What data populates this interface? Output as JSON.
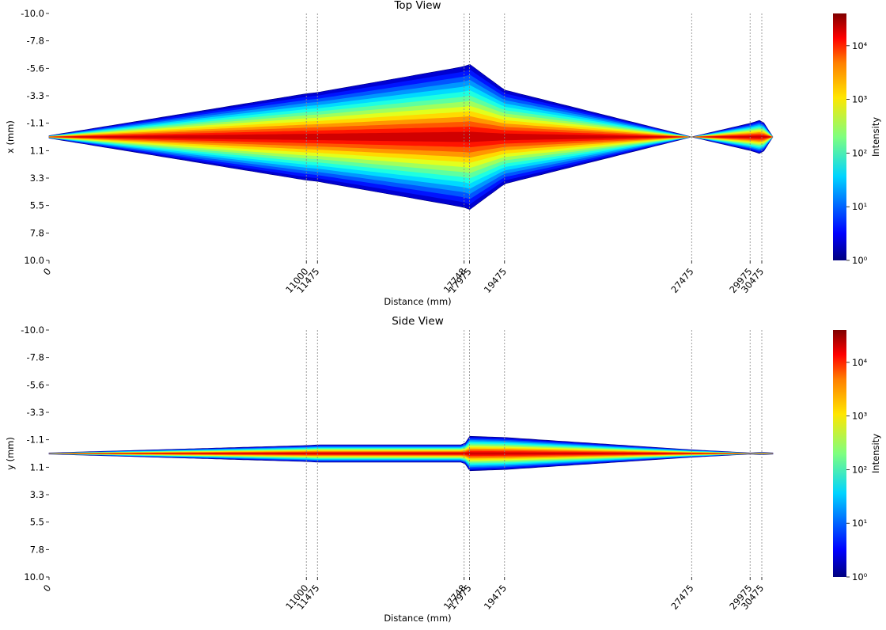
{
  "chart_data": [
    {
      "type": "ray_trace_top",
      "title": "Top View",
      "xlabel": "Distance (mm)",
      "ylabel": "x (mm)",
      "xlim": [
        0,
        30475
      ],
      "ylim": [
        -10.0,
        10.0
      ],
      "yticks": [
        "-10.0",
        "-7.8",
        "-5.6",
        "-3.3",
        "-1.1",
        "1.1",
        "3.3",
        "5.5",
        "7.8",
        "10.0"
      ],
      "xticks": [
        "0",
        "11000",
        "11475",
        "17748",
        "17975",
        "19475",
        "27475",
        "29975",
        "30475"
      ],
      "element_positions": [
        11000,
        11475,
        17748,
        17975,
        19475,
        27475,
        29975,
        30475
      ],
      "beam_envelope": {
        "x": [
          0,
          11000,
          11475,
          17748,
          17975,
          19475,
          27475,
          29975,
          30475,
          30950
        ],
        "half_width": [
          0.1,
          3.5,
          3.6,
          5.7,
          5.9,
          3.8,
          0.0,
          1.1,
          1.4,
          0.0
        ]
      },
      "colorbar": {
        "label": "Intensity",
        "scale": "log",
        "ticks": [
          "10⁰",
          "10¹",
          "10²",
          "10³",
          "10⁴"
        ],
        "range": [
          1,
          40000
        ]
      }
    },
    {
      "type": "ray_trace_side",
      "title": "Side View",
      "xlabel": "Distance (mm)",
      "ylabel": "y (mm)",
      "xlim": [
        0,
        30475
      ],
      "ylim": [
        -10.0,
        10.0
      ],
      "yticks": [
        "-10.0",
        "-7.8",
        "-5.6",
        "-3.3",
        "-1.1",
        "1.1",
        "3.3",
        "5.5",
        "7.8",
        "10.0"
      ],
      "xticks": [
        "0",
        "11000",
        "11475",
        "17748",
        "17975",
        "19475",
        "27475",
        "29975",
        "30475"
      ],
      "element_positions": [
        11000,
        11475,
        17748,
        17975,
        19475,
        27475,
        29975,
        30475
      ],
      "beam_envelope": {
        "x": [
          0,
          11000,
          11475,
          17748,
          17975,
          19475,
          27475,
          29975,
          30475,
          30950
        ],
        "half_width": [
          0.05,
          0.65,
          0.7,
          0.7,
          1.4,
          1.3,
          0.3,
          0.05,
          0.1,
          0.05
        ]
      },
      "colorbar": {
        "label": "Intensity",
        "scale": "log",
        "ticks": [
          "10⁰",
          "10¹",
          "10²",
          "10³",
          "10⁴"
        ],
        "range": [
          1,
          40000
        ]
      }
    }
  ],
  "colors": {
    "jet": [
      "#00007f",
      "#0000ff",
      "#007fff",
      "#00ffff",
      "#7fff7f",
      "#ffff00",
      "#ff7f00",
      "#ff0000",
      "#7f0000"
    ],
    "element_line": "#888888",
    "ray_edge": "#000080"
  }
}
